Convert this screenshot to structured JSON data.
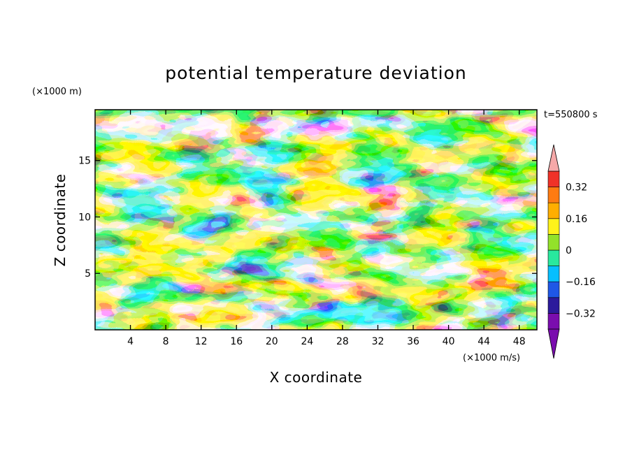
{
  "chart_data": {
    "type": "heatmap",
    "title": "potential temperature deviation",
    "xlabel": "X coordinate",
    "ylabel": "Z coordinate",
    "x_unit": "(×1000 m/s)",
    "y_unit": "(×1000 m)",
    "time_label": "t=550800 s",
    "xlim": [
      0,
      50
    ],
    "ylim": [
      0,
      19.5
    ],
    "x_ticks": [
      4,
      8,
      12,
      16,
      20,
      24,
      28,
      32,
      36,
      40,
      44,
      48
    ],
    "y_ticks": [
      5,
      10,
      15
    ],
    "colorbar": {
      "levels": [
        -0.4,
        -0.32,
        -0.24,
        -0.16,
        -0.08,
        0,
        0.08,
        0.16,
        0.24,
        0.32,
        0.4
      ],
      "tick_labels": [
        "0.32",
        "0.16",
        "0",
        "−0.16",
        "−0.32"
      ],
      "tick_values": [
        0.32,
        0.16,
        0,
        -0.16,
        -0.32
      ],
      "colors": [
        "#7a0dae",
        "#2c1a9c",
        "#1f57e6",
        "#06bfff",
        "#29e89e",
        "#93e12a",
        "#fff21a",
        "#ffae00",
        "#ff7b12",
        "#f03228",
        "#f6a9a9"
      ],
      "extend": "both"
    },
    "grid": false
  }
}
